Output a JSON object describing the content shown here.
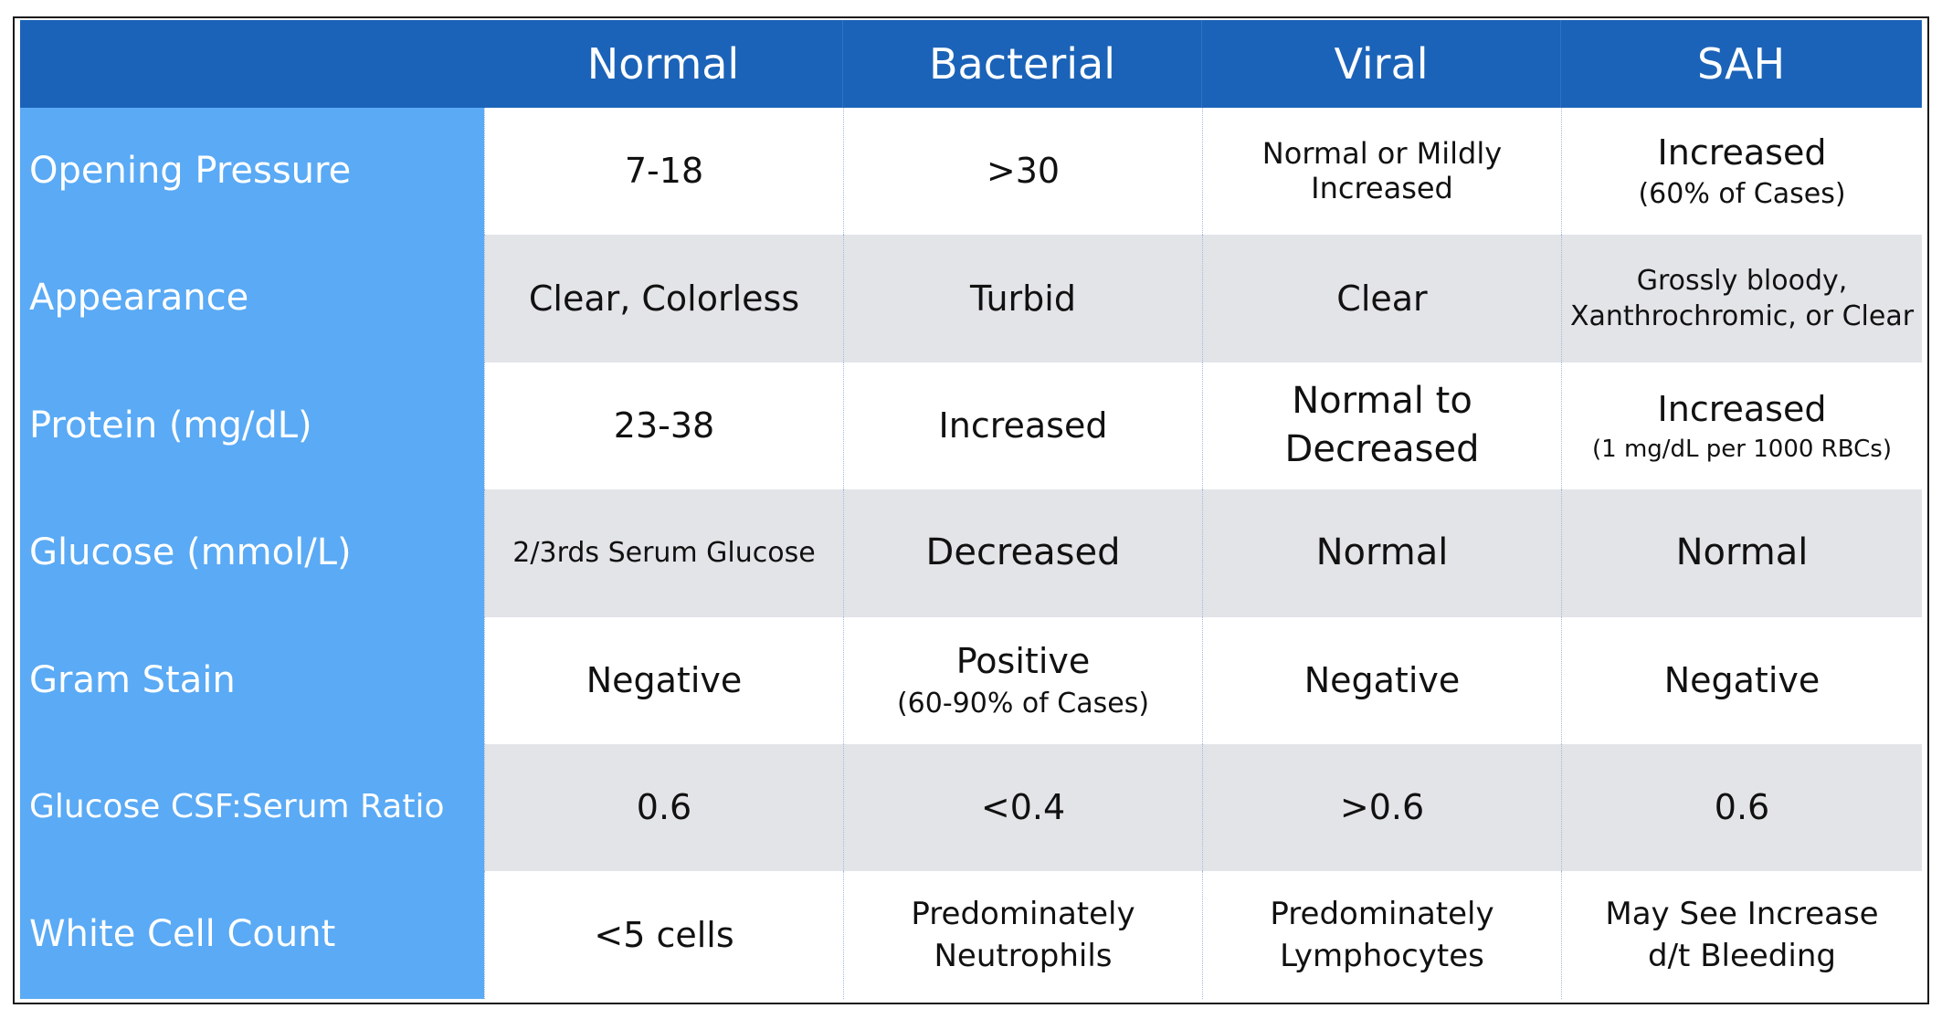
{
  "header": {
    "corner": "",
    "columns": [
      "Normal",
      "Bacterial",
      "Viral",
      "SAH"
    ]
  },
  "rows": [
    {
      "label": "Opening Pressure",
      "cells": [
        {
          "main": "7-18",
          "sub": ""
        },
        {
          "main": ">30",
          "sub": ""
        },
        {
          "main": "Normal or Mildly",
          "main2": "Increased",
          "sub": ""
        },
        {
          "main": "Increased",
          "sub": "(60% of Cases)"
        }
      ]
    },
    {
      "label": "Appearance",
      "cells": [
        {
          "main": "Clear, Colorless",
          "sub": ""
        },
        {
          "main": "Turbid",
          "sub": ""
        },
        {
          "main": "Clear",
          "sub": ""
        },
        {
          "main": "Grossly bloody,",
          "main2": "Xanthrochromic, or Clear",
          "sub": ""
        }
      ]
    },
    {
      "label": "Protein (mg/dL)",
      "cells": [
        {
          "main": "23-38",
          "sub": ""
        },
        {
          "main": "Increased",
          "sub": ""
        },
        {
          "main": "Normal to",
          "main2": "Decreased",
          "sub": ""
        },
        {
          "main": "Increased",
          "sub": "(1 mg/dL per 1000 RBCs)"
        }
      ]
    },
    {
      "label": "Glucose (mmol/L)",
      "cells": [
        {
          "main": "2/3rds Serum Glucose",
          "sub": ""
        },
        {
          "main": "Decreased",
          "sub": ""
        },
        {
          "main": "Normal",
          "sub": ""
        },
        {
          "main": "Normal",
          "sub": ""
        }
      ]
    },
    {
      "label": "Gram Stain",
      "cells": [
        {
          "main": "Negative",
          "sub": ""
        },
        {
          "main": "Positive",
          "sub": "(60-90% of Cases)"
        },
        {
          "main": "Negative",
          "sub": ""
        },
        {
          "main": "Negative",
          "sub": ""
        }
      ]
    },
    {
      "label": "Glucose CSF:Serum Ratio",
      "cells": [
        {
          "main": "0.6",
          "sub": ""
        },
        {
          "main": "<0.4",
          "sub": ""
        },
        {
          "main": ">0.6",
          "sub": ""
        },
        {
          "main": "0.6",
          "sub": ""
        }
      ]
    },
    {
      "label": "White Cell Count",
      "cells": [
        {
          "main": "<5 cells",
          "sub": ""
        },
        {
          "main": "Predominately",
          "main2": "Neutrophils",
          "sub": ""
        },
        {
          "main": "Predominately",
          "main2": "Lymphocytes",
          "sub": ""
        },
        {
          "main": "May See Increase",
          "main2": "d/t Bleeding",
          "sub": ""
        }
      ]
    }
  ],
  "colors": {
    "header_bg": "#1b63b8",
    "label_bg": "#5aaaf5",
    "alt_row_bg": "#e3e4e8",
    "white_row_bg": "#ffffff"
  }
}
